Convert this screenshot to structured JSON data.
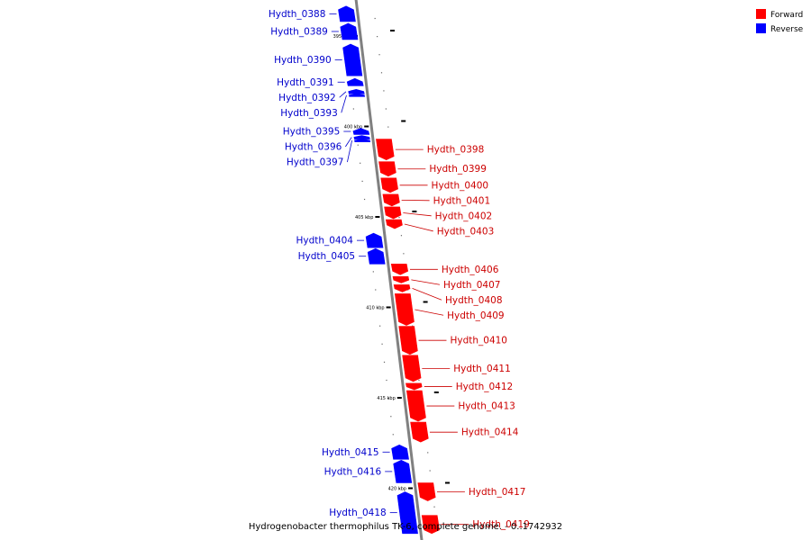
{
  "caption": "Hydrogenobacter thermophilus TK-6, complete genome. - 0..1742932",
  "colors": {
    "forward": "#ff0000",
    "reverse": "#0000ff",
    "forward_label": "#cc0000",
    "reverse_label": "#0000cc",
    "backbone": "#808080"
  },
  "legend": [
    {
      "label": "Forward",
      "color": "#ff0000"
    },
    {
      "label": "Reverse",
      "color": "#0000ff"
    }
  ],
  "ticks": [
    {
      "kbp": 395,
      "label": "395 kbp"
    },
    {
      "kbp": 400,
      "label": "400 kbp"
    },
    {
      "kbp": 405,
      "label": "405 kbp"
    },
    {
      "kbp": 410,
      "label": "410 kbp"
    },
    {
      "kbp": 415,
      "label": "415 kbp"
    },
    {
      "kbp": 420,
      "label": "420 kbp"
    }
  ],
  "genes": [
    {
      "name": "Hydth_0388",
      "strand": "reverse",
      "start": 393.35,
      "end": 394.2
    },
    {
      "name": "Hydth_0389",
      "strand": "reverse",
      "start": 394.3,
      "end": 395.2
    },
    {
      "name": "Hydth_0390",
      "strand": "reverse",
      "start": 395.45,
      "end": 397.2
    },
    {
      "name": "Hydth_0391",
      "strand": "reverse",
      "start": 397.35,
      "end": 397.75
    },
    {
      "name": "Hydth_0392",
      "strand": "reverse",
      "start": 397.95,
      "end": 398.2
    },
    {
      "name": "Hydth_0393",
      "strand": "reverse",
      "start": 398.2,
      "end": 398.35
    },
    {
      "name": "Hydth_0395",
      "strand": "reverse",
      "start": 400.1,
      "end": 400.45
    },
    {
      "name": "Hydth_0396",
      "strand": "reverse",
      "start": 400.5,
      "end": 400.7
    },
    {
      "name": "Hydth_0397",
      "strand": "reverse",
      "start": 400.7,
      "end": 400.85
    },
    {
      "name": "Hydth_0398",
      "strand": "forward",
      "start": 400.7,
      "end": 401.85
    },
    {
      "name": "Hydth_0399",
      "strand": "forward",
      "start": 401.95,
      "end": 402.75
    },
    {
      "name": "Hydth_0400",
      "strand": "forward",
      "start": 402.85,
      "end": 403.65
    },
    {
      "name": "Hydth_0401",
      "strand": "forward",
      "start": 403.75,
      "end": 404.4
    },
    {
      "name": "Hydth_0402",
      "strand": "forward",
      "start": 404.45,
      "end": 405.1
    },
    {
      "name": "Hydth_0403",
      "strand": "forward",
      "start": 405.15,
      "end": 405.65
    },
    {
      "name": "Hydth_0404",
      "strand": "reverse",
      "start": 405.9,
      "end": 406.7
    },
    {
      "name": "Hydth_0405",
      "strand": "reverse",
      "start": 406.75,
      "end": 407.6
    },
    {
      "name": "Hydth_0406",
      "strand": "forward",
      "start": 407.6,
      "end": 408.2
    },
    {
      "name": "Hydth_0407",
      "strand": "forward",
      "start": 408.3,
      "end": 408.65
    },
    {
      "name": "Hydth_0408",
      "strand": "forward",
      "start": 408.75,
      "end": 409.15
    },
    {
      "name": "Hydth_0409",
      "strand": "forward",
      "start": 409.25,
      "end": 411.0
    },
    {
      "name": "Hydth_0410",
      "strand": "forward",
      "start": 411.05,
      "end": 412.6
    },
    {
      "name": "Hydth_0411",
      "strand": "forward",
      "start": 412.65,
      "end": 414.1
    },
    {
      "name": "Hydth_0412",
      "strand": "forward",
      "start": 414.2,
      "end": 414.55
    },
    {
      "name": "Hydth_0413",
      "strand": "forward",
      "start": 414.6,
      "end": 416.3
    },
    {
      "name": "Hydth_0414",
      "strand": "forward",
      "start": 416.35,
      "end": 417.45
    },
    {
      "name": "Hydth_0415",
      "strand": "reverse",
      "start": 417.6,
      "end": 418.4
    },
    {
      "name": "Hydth_0416",
      "strand": "reverse",
      "start": 418.45,
      "end": 419.7
    },
    {
      "name": "Hydth_0417",
      "strand": "forward",
      "start": 419.7,
      "end": 420.7
    },
    {
      "name": "Hydth_0418",
      "strand": "reverse",
      "start": 420.2,
      "end": 422.5
    },
    {
      "name": "Hydth_0419",
      "strand": "forward",
      "start": 421.5,
      "end": 422.5
    }
  ]
}
